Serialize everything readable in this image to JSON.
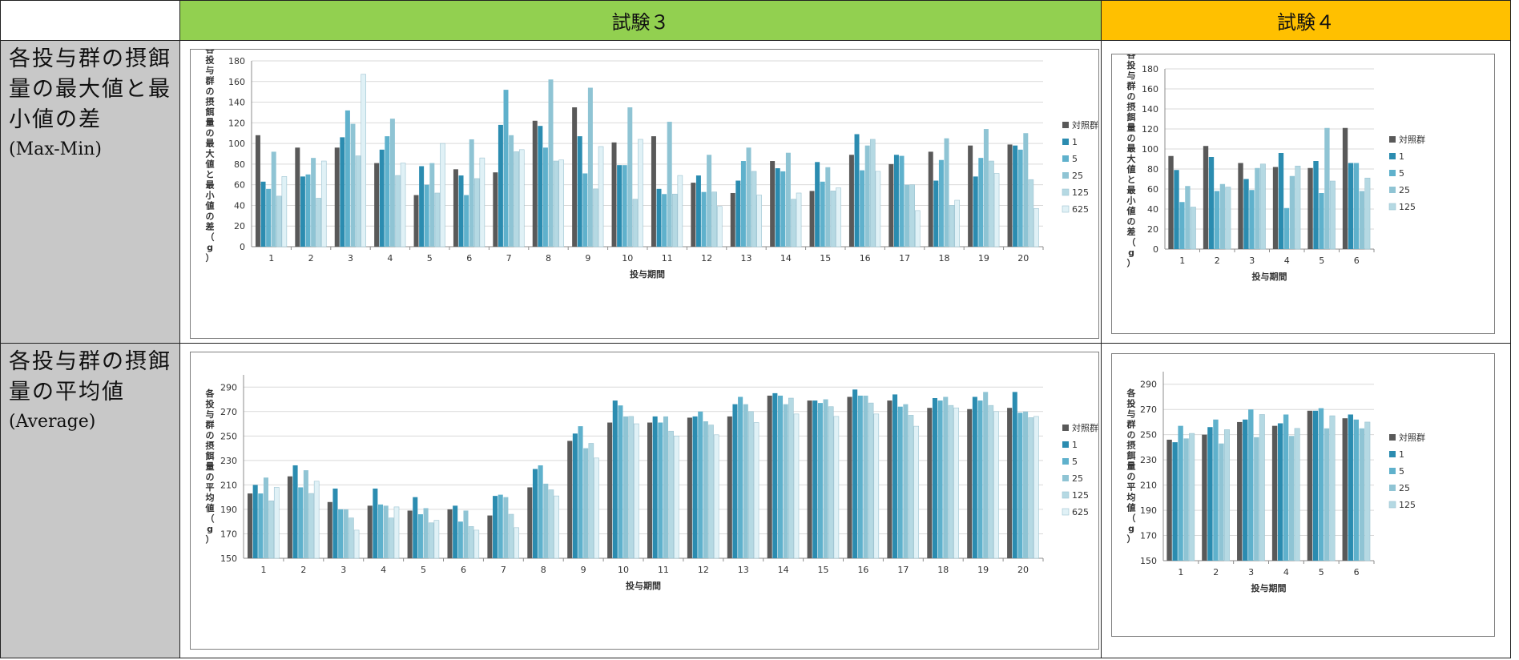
{
  "headers": {
    "corner": "",
    "trial3": "試験３",
    "trial4": "試験４"
  },
  "colors": {
    "trial3_header": "#92d050",
    "trial4_header": "#ffc000",
    "label_bg": "#c8c8c8"
  },
  "rows": [
    {
      "label": "各投与群の摂餌量の最大値と最小値の差",
      "sublabel": "(Max-Min)"
    },
    {
      "label": "各投与群の摂餌量の平均値",
      "sublabel": "(Average)"
    }
  ],
  "series_colors": [
    "#595959",
    "#2b8cb0",
    "#5fb1cc",
    "#8fc4d4",
    "#b5d9e3",
    "#e0f1f6"
  ],
  "chart_data": [
    {
      "id": "t3_maxmin",
      "type": "bar",
      "ylabel": "各投与群の摂餌量の最大値と最小値の差（g）",
      "xlabel": "投与期間",
      "ylim": [
        0,
        180
      ],
      "yticks": [
        0,
        20,
        40,
        60,
        80,
        100,
        120,
        140,
        160,
        180
      ],
      "grid": true,
      "legend": "right",
      "categories": [
        "1",
        "2",
        "3",
        "4",
        "5",
        "6",
        "7",
        "8",
        "9",
        "10",
        "11",
        "12",
        "13",
        "14",
        "15",
        "16",
        "17",
        "18",
        "19",
        "20"
      ],
      "series": [
        {
          "name": "対照群",
          "values": [
            108,
            96,
            96,
            81,
            50,
            75,
            72,
            122,
            135,
            101,
            107,
            62,
            52,
            83,
            54,
            89,
            80,
            92,
            98,
            99
          ]
        },
        {
          "name": "1",
          "values": [
            63,
            68,
            106,
            94,
            78,
            69,
            118,
            117,
            107,
            79,
            56,
            69,
            64,
            76,
            82,
            109,
            89,
            64,
            68,
            98
          ]
        },
        {
          "name": "5",
          "values": [
            56,
            70,
            132,
            107,
            60,
            50,
            152,
            96,
            71,
            79,
            51,
            53,
            83,
            73,
            63,
            74,
            88,
            84,
            86,
            94
          ]
        },
        {
          "name": "25",
          "values": [
            92,
            86,
            119,
            124,
            81,
            104,
            108,
            162,
            154,
            135,
            121,
            89,
            96,
            91,
            77,
            98,
            60,
            105,
            114,
            110
          ]
        },
        {
          "name": "125",
          "values": [
            49,
            47,
            88,
            69,
            52,
            66,
            92,
            83,
            56,
            46,
            51,
            53,
            73,
            46,
            54,
            104,
            60,
            40,
            83,
            65
          ]
        },
        {
          "name": "625",
          "values": [
            68,
            83,
            167,
            81,
            100,
            86,
            94,
            84,
            97,
            104,
            69,
            39,
            50,
            52,
            57,
            73,
            35,
            45,
            71,
            37
          ]
        }
      ]
    },
    {
      "id": "t4_maxmin",
      "type": "bar",
      "ylabel": "各投与群の摂餌量の最大値と最小値の差（g）",
      "xlabel": "投与期間",
      "ylim": [
        0,
        180
      ],
      "yticks": [
        0,
        20,
        40,
        60,
        80,
        100,
        120,
        140,
        160,
        180
      ],
      "grid": true,
      "legend": "right",
      "categories": [
        "1",
        "2",
        "3",
        "4",
        "5",
        "6"
      ],
      "series": [
        {
          "name": "対照群",
          "values": [
            93,
            103,
            86,
            82,
            81,
            121
          ]
        },
        {
          "name": "1",
          "values": [
            79,
            92,
            70,
            96,
            88,
            86
          ]
        },
        {
          "name": "5",
          "values": [
            47,
            58,
            59,
            41,
            56,
            86
          ]
        },
        {
          "name": "25",
          "values": [
            63,
            65,
            81,
            73,
            121,
            58
          ]
        },
        {
          "name": "125",
          "values": [
            42,
            62,
            85,
            83,
            68,
            71
          ]
        }
      ]
    },
    {
      "id": "t3_avg",
      "type": "bar",
      "ylabel": "各投与群の摂餌量の平均値（g）",
      "xlabel": "投与期間",
      "ylim": [
        150,
        300
      ],
      "yticks": [
        150,
        170,
        190,
        210,
        230,
        250,
        270,
        290
      ],
      "grid": true,
      "legend": "right",
      "categories": [
        "1",
        "2",
        "3",
        "4",
        "5",
        "6",
        "7",
        "8",
        "9",
        "10",
        "11",
        "12",
        "13",
        "14",
        "15",
        "16",
        "17",
        "18",
        "19",
        "20"
      ],
      "series": [
        {
          "name": "対照群",
          "values": [
            203,
            217,
            196,
            193,
            189,
            190,
            185,
            208,
            246,
            261,
            261,
            265,
            266,
            283,
            279,
            282,
            279,
            273,
            272,
            273
          ]
        },
        {
          "name": "1",
          "values": [
            210,
            226,
            207,
            207,
            200,
            193,
            201,
            223,
            252,
            279,
            266,
            266,
            276,
            285,
            279,
            288,
            284,
            281,
            282,
            286
          ]
        },
        {
          "name": "5",
          "values": [
            203,
            208,
            190,
            194,
            186,
            180,
            202,
            226,
            258,
            275,
            261,
            270,
            282,
            283,
            277,
            283,
            274,
            279,
            279,
            269
          ]
        },
        {
          "name": "25",
          "values": [
            216,
            222,
            190,
            193,
            191,
            189,
            200,
            211,
            240,
            266,
            266,
            262,
            276,
            276,
            280,
            283,
            276,
            282,
            286,
            270
          ]
        },
        {
          "name": "125",
          "values": [
            197,
            203,
            183,
            183,
            179,
            176,
            186,
            206,
            244,
            266,
            254,
            259,
            270,
            281,
            274,
            277,
            267,
            275,
            275,
            265
          ]
        },
        {
          "name": "625",
          "values": [
            208,
            213,
            173,
            192,
            181,
            173,
            175,
            201,
            232,
            260,
            250,
            251,
            261,
            268,
            266,
            268,
            258,
            273,
            270,
            266
          ]
        }
      ]
    },
    {
      "id": "t4_avg",
      "type": "bar",
      "ylabel": "各投与群の摂餌量の平均値（g）",
      "xlabel": "投与期間",
      "ylim": [
        150,
        300
      ],
      "yticks": [
        150,
        170,
        190,
        210,
        230,
        250,
        270,
        290
      ],
      "grid": true,
      "legend": "right",
      "categories": [
        "1",
        "2",
        "3",
        "4",
        "5",
        "6"
      ],
      "series": [
        {
          "name": "対照群",
          "values": [
            246,
            250,
            260,
            257,
            269,
            263
          ]
        },
        {
          "name": "1",
          "values": [
            244,
            256,
            262,
            259,
            269,
            266
          ]
        },
        {
          "name": "5",
          "values": [
            257,
            262,
            270,
            266,
            271,
            262
          ]
        },
        {
          "name": "25",
          "values": [
            247,
            243,
            248,
            249,
            255,
            255
          ]
        },
        {
          "name": "125",
          "values": [
            251,
            254,
            266,
            255,
            265,
            260
          ]
        }
      ]
    }
  ]
}
